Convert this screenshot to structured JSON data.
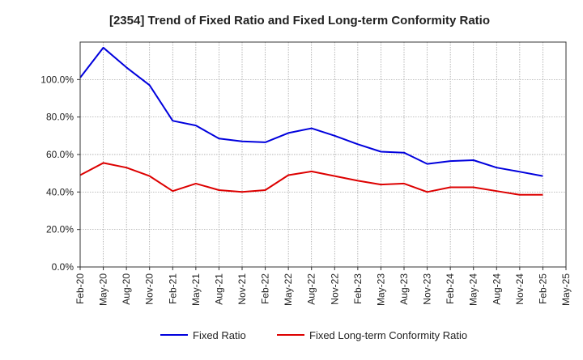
{
  "chart_data": {
    "type": "line",
    "title": "[2354]  Trend of Fixed Ratio and Fixed Long-term Conformity Ratio",
    "xlabel": "",
    "ylabel": "",
    "x": [
      "Feb-20",
      "May-20",
      "Aug-20",
      "Nov-20",
      "Feb-21",
      "May-21",
      "Aug-21",
      "Nov-21",
      "Feb-22",
      "May-22",
      "Aug-22",
      "Nov-22",
      "Feb-23",
      "May-23",
      "Aug-23",
      "Nov-23",
      "Feb-24",
      "May-24",
      "Aug-24",
      "Nov-24",
      "Feb-25",
      "May-25"
    ],
    "yticks": [
      "0.0%",
      "20.0%",
      "40.0%",
      "60.0%",
      "80.0%",
      "100.0%"
    ],
    "ylim": [
      0,
      120
    ],
    "grid": true,
    "legend_position": "bottom",
    "series": [
      {
        "name": "Fixed Ratio",
        "color": "#0000dd",
        "values": [
          101,
          117,
          106.5,
          97,
          78,
          75.5,
          68.5,
          67,
          66.5,
          71.5,
          74,
          70,
          65.5,
          61.5,
          61,
          55,
          56.5,
          57,
          53,
          50.8,
          48.5,
          null
        ]
      },
      {
        "name": "Fixed Long-term Conformity Ratio",
        "color": "#dd0000",
        "values": [
          49,
          55.5,
          53,
          48.5,
          40.5,
          44.5,
          41,
          40,
          41,
          49,
          51,
          48.5,
          46,
          44,
          44.5,
          40,
          42.5,
          42.5,
          40.5,
          38.5,
          38.5,
          null
        ]
      }
    ]
  }
}
